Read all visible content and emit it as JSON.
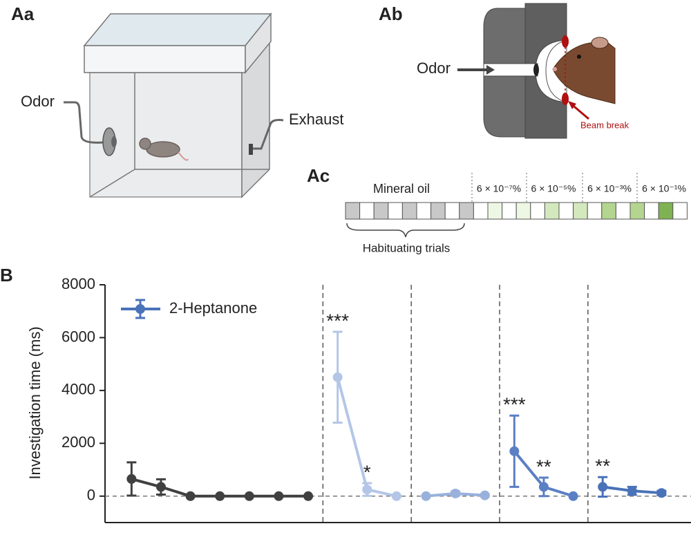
{
  "panels": {
    "Aa": {
      "label": "Aa",
      "odor": "Odor",
      "exhaust": "Exhaust"
    },
    "Ab": {
      "label": "Ab",
      "odor": "Odor",
      "beam": "Beam break"
    },
    "Ac": {
      "label": "Ac",
      "mineral_oil": "Mineral oil",
      "concentrations": [
        "6 × 10⁻⁷%",
        "6 × 10⁻⁵%",
        "6 × 10⁻³%",
        "6 × 10⁻¹%"
      ],
      "habituating": "Habituating trials"
    }
  },
  "chart_data": {
    "type": "line",
    "panel_label": "B",
    "y_label": "Investigation time (ms)",
    "legend": {
      "name": "2-Heptanone",
      "color": "#4a72b8"
    },
    "xlim": [
      0.1,
      20
    ],
    "ylim": [
      -1000,
      8000
    ],
    "yticks": [
      0,
      2000,
      4000,
      6000,
      8000
    ],
    "series": [
      {
        "color": "#404040",
        "x": [
          1,
          2,
          3,
          4,
          5,
          6,
          7
        ],
        "values": [
          650,
          350,
          0,
          0,
          0,
          0,
          0
        ],
        "errors": [
          630,
          290,
          0,
          0,
          0,
          0,
          0
        ],
        "significance": [
          null,
          null,
          null,
          null,
          null,
          null,
          null
        ]
      },
      {
        "color": "#b4c6e7",
        "x": [
          8,
          9,
          10
        ],
        "values": [
          4500,
          250,
          0
        ],
        "errors": [
          1720,
          240,
          0
        ],
        "significance": [
          "***",
          "*",
          null
        ]
      },
      {
        "color": "#98b1dd",
        "x": [
          11,
          12,
          13
        ],
        "values": [
          0,
          100,
          30
        ],
        "errors": [
          0,
          80,
          40
        ],
        "significance": [
          null,
          null,
          null
        ]
      },
      {
        "color": "#5b7fc4",
        "x": [
          14,
          15,
          16
        ],
        "values": [
          1700,
          350,
          0
        ],
        "errors": [
          1350,
          350,
          0
        ],
        "significance": [
          "***",
          "**",
          null
        ]
      },
      {
        "color": "#4a72b8",
        "x": [
          17,
          18,
          19
        ],
        "values": [
          350,
          200,
          120
        ],
        "errors": [
          370,
          150,
          80
        ],
        "significance": [
          "**",
          null,
          null
        ]
      }
    ]
  }
}
